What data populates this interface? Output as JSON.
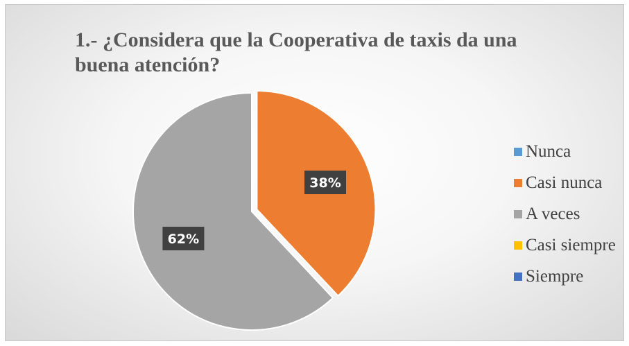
{
  "chart_data": {
    "type": "pie",
    "title": "1.- ¿Considera que la Cooperativa de taxis da una buena atención?",
    "categories": [
      "Nunca",
      "Casi nunca",
      "A veces",
      "Casi siempre",
      "Siempre"
    ],
    "values": [
      0,
      38,
      62,
      0,
      0
    ],
    "data_labels": [
      "",
      "38%",
      "62%",
      "",
      ""
    ],
    "colors": [
      "#5B9BD5",
      "#ED7D31",
      "#A5A5A5",
      "#FFC000",
      "#4472C4"
    ],
    "legend_position": "right",
    "exploded_slice": "Casi nunca"
  }
}
